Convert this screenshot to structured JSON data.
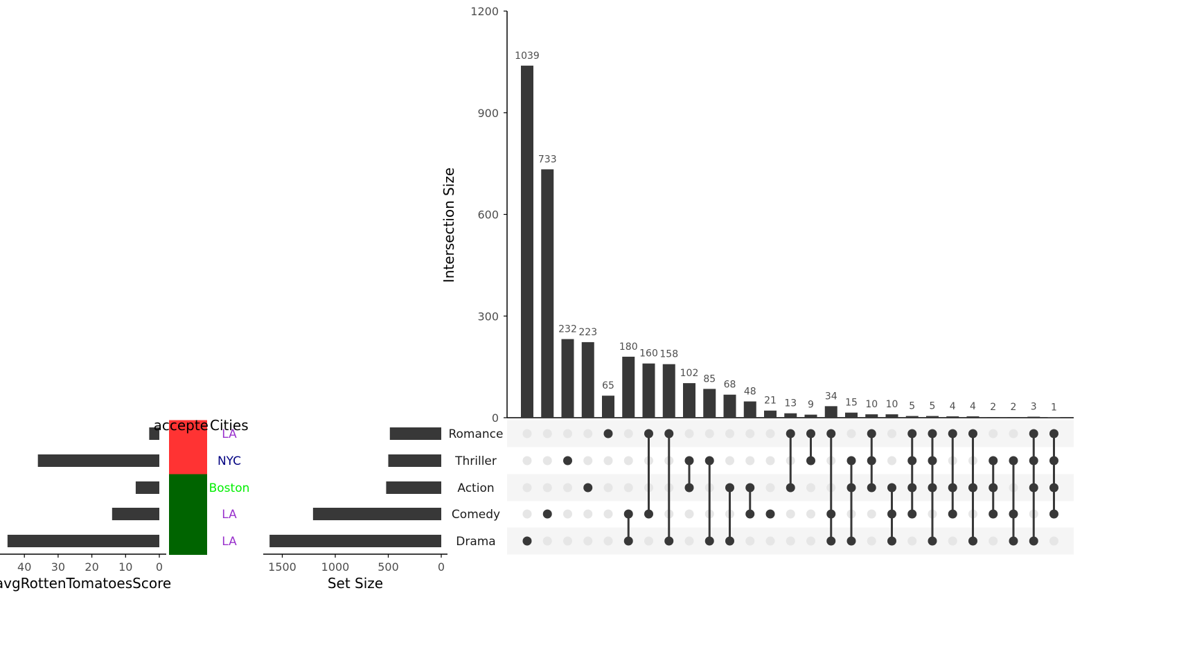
{
  "chart_data": {
    "type": "upset",
    "intersection_axis": {
      "title": "Intersection Size",
      "ylim": [
        0,
        1200
      ],
      "ticks": [
        0,
        300,
        600,
        900,
        1200
      ]
    },
    "sets": [
      "Romance",
      "Thriller",
      "Action",
      "Comedy",
      "Drama"
    ],
    "intersections": [
      {
        "size": 1039,
        "members": [
          "Drama"
        ]
      },
      {
        "size": 733,
        "members": [
          "Comedy"
        ]
      },
      {
        "size": 232,
        "members": [
          "Thriller"
        ]
      },
      {
        "size": 223,
        "members": [
          "Action"
        ]
      },
      {
        "size": 65,
        "members": [
          "Romance"
        ]
      },
      {
        "size": 180,
        "members": [
          "Comedy",
          "Drama"
        ]
      },
      {
        "size": 160,
        "members": [
          "Romance",
          "Comedy"
        ]
      },
      {
        "size": 158,
        "members": [
          "Romance",
          "Drama"
        ]
      },
      {
        "size": 102,
        "members": [
          "Thriller",
          "Action"
        ]
      },
      {
        "size": 85,
        "members": [
          "Thriller",
          "Drama"
        ]
      },
      {
        "size": 68,
        "members": [
          "Action",
          "Drama"
        ]
      },
      {
        "size": 48,
        "members": [
          "Action",
          "Comedy"
        ]
      },
      {
        "size": 21,
        "members": [
          "Comedy"
        ]
      },
      {
        "size": 13,
        "members": [
          "Romance",
          "Action"
        ]
      },
      {
        "size": 9,
        "members": [
          "Romance",
          "Thriller"
        ]
      },
      {
        "size": 34,
        "members": [
          "Romance",
          "Comedy",
          "Drama"
        ]
      },
      {
        "size": 15,
        "members": [
          "Thriller",
          "Action",
          "Drama"
        ]
      },
      {
        "size": 10,
        "members": [
          "Romance",
          "Thriller",
          "Action"
        ]
      },
      {
        "size": 10,
        "members": [
          "Action",
          "Comedy",
          "Drama"
        ]
      },
      {
        "size": 5,
        "members": [
          "Romance",
          "Thriller",
          "Action",
          "Comedy"
        ]
      },
      {
        "size": 5,
        "members": [
          "Romance",
          "Thriller",
          "Action",
          "Drama"
        ]
      },
      {
        "size": 4,
        "members": [
          "Romance",
          "Action",
          "Comedy"
        ]
      },
      {
        "size": 4,
        "members": [
          "Romance",
          "Action",
          "Drama"
        ]
      },
      {
        "size": 2,
        "members": [
          "Thriller",
          "Action",
          "Comedy"
        ]
      },
      {
        "size": 2,
        "members": [
          "Thriller",
          "Comedy",
          "Drama"
        ]
      },
      {
        "size": 3,
        "members": [
          "Romance",
          "Thriller",
          "Action",
          "Drama"
        ]
      },
      {
        "size": 1,
        "members": [
          "Romance",
          "Thriller",
          "Action",
          "Comedy"
        ]
      }
    ],
    "set_size_axis": {
      "title": "Set Size",
      "ticks": [
        1500,
        1000,
        500,
        0
      ],
      "max": 1600
    },
    "set_sizes": [
      {
        "set": "Romance",
        "value": 485
      },
      {
        "set": "Thriller",
        "value": 500
      },
      {
        "set": "Action",
        "value": 520
      },
      {
        "set": "Comedy",
        "value": 1210
      },
      {
        "set": "Drama",
        "value": 1620
      }
    ],
    "avg_score_axis": {
      "title": "avgRottenTomatoesScore",
      "ticks": [
        40,
        30,
        20,
        10,
        0
      ],
      "max": 45
    },
    "avg_scores": [
      {
        "set": "Romance",
        "value": 3
      },
      {
        "set": "Thriller",
        "value": 36
      },
      {
        "set": "Action",
        "value": 7
      },
      {
        "set": "Comedy",
        "value": 14
      },
      {
        "set": "Drama",
        "value": 45
      }
    ],
    "accepted_cities": {
      "title_left": "accepte",
      "title_right": "Cities",
      "rows": [
        {
          "set": "Romance",
          "city": "LA",
          "fill": "#ff3333",
          "text_color": "#9932cc"
        },
        {
          "set": "Thriller",
          "city": "NYC",
          "fill": "#ff3333",
          "text_color": "#000080"
        },
        {
          "set": "Action",
          "city": "Boston",
          "fill": "#006400",
          "text_color": "#00ee00"
        },
        {
          "set": "Comedy",
          "city": "LA",
          "fill": "#006400",
          "text_color": "#9932cc"
        },
        {
          "set": "Drama",
          "city": "LA",
          "fill": "#006400",
          "text_color": "#9932cc"
        }
      ]
    },
    "colors": {
      "bar": "#383838",
      "dot_active": "#383838",
      "dot_inactive": "#e6e6e6",
      "stripe": "#f5f5f5",
      "axis": "#000000"
    }
  }
}
